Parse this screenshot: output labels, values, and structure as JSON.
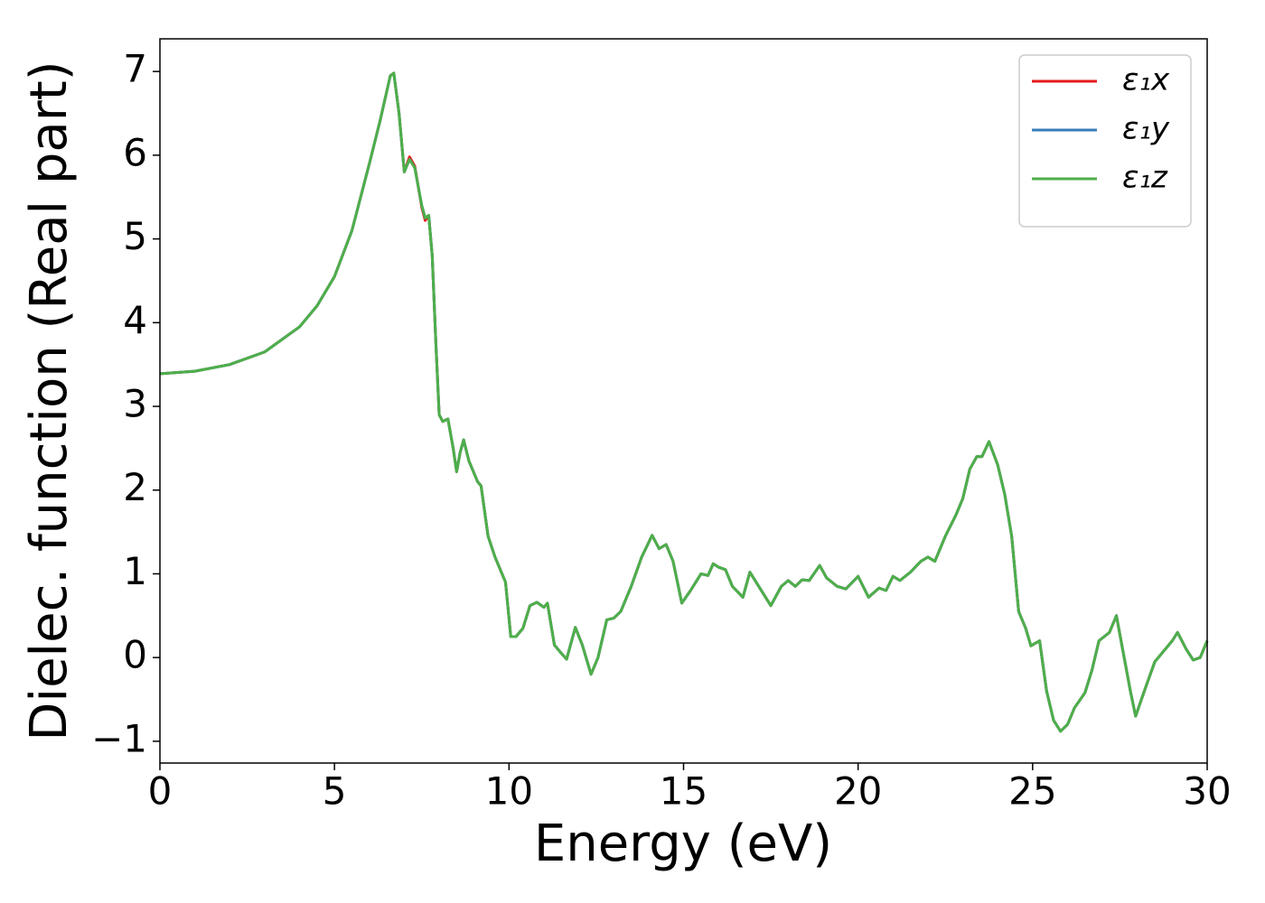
{
  "chart_data": {
    "type": "line",
    "xlabel": "Energy (eV)",
    "ylabel": "Dielec. function (Real part)",
    "x": [
      0,
      1,
      2,
      3,
      4,
      4.5,
      5,
      5.5,
      6,
      6.3,
      6.6,
      6.7,
      6.85,
      7.0,
      7.15,
      7.3,
      7.5,
      7.6,
      7.7,
      7.8,
      7.9,
      8.0,
      8.1,
      8.25,
      8.4,
      8.5,
      8.6,
      8.7,
      8.85,
      9.0,
      9.1,
      9.2,
      9.4,
      9.6,
      9.75,
      9.9,
      10.05,
      10.2,
      10.4,
      10.6,
      10.8,
      11.0,
      11.1,
      11.3,
      11.5,
      11.65,
      11.9,
      12.1,
      12.35,
      12.55,
      12.8,
      13.0,
      13.2,
      13.5,
      13.8,
      14.1,
      14.3,
      14.5,
      14.7,
      14.95,
      15.2,
      15.5,
      15.7,
      15.85,
      16.0,
      16.2,
      16.4,
      16.7,
      16.9,
      17.2,
      17.5,
      17.8,
      18.0,
      18.2,
      18.4,
      18.6,
      18.9,
      19.1,
      19.4,
      19.65,
      20.0,
      20.3,
      20.6,
      20.8,
      21.0,
      21.2,
      21.5,
      21.8,
      22.0,
      22.2,
      22.5,
      22.8,
      23.0,
      23.2,
      23.4,
      23.55,
      23.75,
      24.0,
      24.2,
      24.4,
      24.6,
      24.8,
      24.95,
      25.2,
      25.4,
      25.6,
      25.8,
      26.0,
      26.2,
      26.5,
      26.7,
      26.9,
      27.2,
      27.4,
      27.6,
      27.8,
      27.95,
      28.2,
      28.5,
      28.7,
      29.0,
      29.15,
      29.4,
      29.6,
      29.8,
      30.0
    ],
    "series": [
      {
        "name": "ε₁x",
        "color": "#e41a1c",
        "values": [
          3.39,
          3.42,
          3.5,
          3.65,
          3.95,
          4.2,
          4.55,
          5.1,
          5.9,
          6.4,
          6.95,
          6.98,
          6.5,
          5.8,
          5.98,
          5.87,
          5.38,
          5.22,
          5.28,
          4.8,
          3.8,
          2.9,
          2.82,
          2.85,
          2.5,
          2.22,
          2.45,
          2.6,
          2.35,
          2.2,
          2.1,
          2.05,
          1.45,
          1.2,
          1.05,
          0.9,
          0.25,
          0.25,
          0.35,
          0.62,
          0.66,
          0.6,
          0.65,
          0.15,
          0.05,
          -0.02,
          0.36,
          0.15,
          -0.2,
          0.0,
          0.45,
          0.47,
          0.55,
          0.85,
          1.2,
          1.46,
          1.3,
          1.35,
          1.15,
          0.65,
          0.8,
          1.0,
          0.98,
          1.12,
          1.08,
          1.05,
          0.85,
          0.72,
          1.02,
          0.82,
          0.62,
          0.85,
          0.92,
          0.85,
          0.93,
          0.92,
          1.1,
          0.95,
          0.85,
          0.82,
          0.97,
          0.72,
          0.83,
          0.8,
          0.97,
          0.92,
          1.02,
          1.15,
          1.2,
          1.15,
          1.45,
          1.7,
          1.9,
          2.25,
          2.4,
          2.4,
          2.58,
          2.3,
          1.95,
          1.45,
          0.55,
          0.35,
          0.14,
          0.2,
          -0.4,
          -0.75,
          -0.88,
          -0.8,
          -0.6,
          -0.42,
          -0.15,
          0.2,
          0.3,
          0.5,
          0.05,
          -0.4,
          -0.7,
          -0.4,
          -0.05,
          0.05,
          0.2,
          0.3,
          0.1,
          -0.03,
          0.0,
          0.2
        ]
      },
      {
        "name": "ε₁y",
        "color": "#377eb8",
        "values": [
          3.39,
          3.42,
          3.5,
          3.65,
          3.95,
          4.2,
          4.55,
          5.1,
          5.9,
          6.4,
          6.95,
          6.98,
          6.5,
          5.8,
          5.95,
          5.85,
          5.4,
          5.25,
          5.28,
          4.8,
          3.8,
          2.9,
          2.82,
          2.85,
          2.5,
          2.22,
          2.45,
          2.6,
          2.35,
          2.2,
          2.1,
          2.05,
          1.45,
          1.2,
          1.05,
          0.9,
          0.25,
          0.25,
          0.35,
          0.62,
          0.66,
          0.6,
          0.65,
          0.15,
          0.05,
          -0.02,
          0.36,
          0.15,
          -0.2,
          0.0,
          0.45,
          0.47,
          0.55,
          0.85,
          1.2,
          1.46,
          1.3,
          1.35,
          1.15,
          0.65,
          0.8,
          1.0,
          0.98,
          1.12,
          1.08,
          1.05,
          0.85,
          0.72,
          1.02,
          0.82,
          0.62,
          0.85,
          0.92,
          0.85,
          0.93,
          0.92,
          1.1,
          0.95,
          0.85,
          0.82,
          0.97,
          0.72,
          0.83,
          0.8,
          0.97,
          0.92,
          1.02,
          1.15,
          1.2,
          1.15,
          1.45,
          1.7,
          1.9,
          2.25,
          2.4,
          2.4,
          2.58,
          2.3,
          1.95,
          1.45,
          0.55,
          0.35,
          0.14,
          0.2,
          -0.4,
          -0.75,
          -0.88,
          -0.8,
          -0.6,
          -0.42,
          -0.15,
          0.2,
          0.3,
          0.5,
          0.05,
          -0.4,
          -0.7,
          -0.4,
          -0.05,
          0.05,
          0.2,
          0.3,
          0.1,
          -0.03,
          0.0,
          0.2
        ]
      },
      {
        "name": "ε₁z",
        "color": "#4daf4a",
        "values": [
          3.39,
          3.42,
          3.5,
          3.65,
          3.95,
          4.2,
          4.55,
          5.1,
          5.9,
          6.4,
          6.95,
          6.98,
          6.5,
          5.8,
          5.95,
          5.85,
          5.4,
          5.25,
          5.28,
          4.8,
          3.8,
          2.9,
          2.82,
          2.85,
          2.5,
          2.22,
          2.45,
          2.6,
          2.35,
          2.2,
          2.1,
          2.05,
          1.45,
          1.2,
          1.05,
          0.9,
          0.25,
          0.25,
          0.35,
          0.62,
          0.66,
          0.6,
          0.65,
          0.15,
          0.05,
          -0.02,
          0.36,
          0.15,
          -0.2,
          0.0,
          0.45,
          0.47,
          0.55,
          0.85,
          1.2,
          1.46,
          1.3,
          1.35,
          1.15,
          0.65,
          0.8,
          1.0,
          0.98,
          1.12,
          1.08,
          1.05,
          0.85,
          0.72,
          1.02,
          0.82,
          0.62,
          0.85,
          0.92,
          0.85,
          0.93,
          0.92,
          1.1,
          0.95,
          0.85,
          0.82,
          0.97,
          0.72,
          0.83,
          0.8,
          0.97,
          0.92,
          1.02,
          1.15,
          1.2,
          1.15,
          1.45,
          1.7,
          1.9,
          2.25,
          2.4,
          2.4,
          2.58,
          2.3,
          1.95,
          1.45,
          0.55,
          0.35,
          0.14,
          0.2,
          -0.4,
          -0.75,
          -0.88,
          -0.8,
          -0.6,
          -0.42,
          -0.15,
          0.2,
          0.3,
          0.5,
          0.05,
          -0.4,
          -0.7,
          -0.4,
          -0.05,
          0.05,
          0.2,
          0.3,
          0.1,
          -0.03,
          0.0,
          0.2
        ]
      }
    ],
    "xlim": [
      0,
      30
    ],
    "xticks": [
      0,
      5,
      10,
      15,
      20,
      25,
      30
    ],
    "ylim": [
      -1.26,
      7.39
    ],
    "yticks": [
      {
        "value": -1,
        "label": "−1"
      },
      0,
      1,
      2,
      3,
      4,
      5,
      6,
      7
    ],
    "legend": "upper right",
    "grid": false
  }
}
